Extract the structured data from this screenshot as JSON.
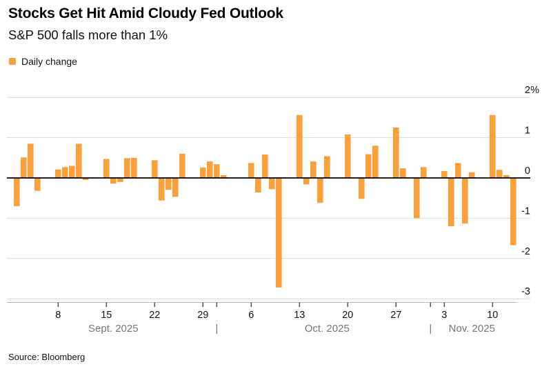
{
  "header": {
    "title": "Stocks Get Hit Amid Cloudy Fed Outlook",
    "subtitle": "S&P 500 falls more than 1%",
    "legend": [
      {
        "label": "Daily change",
        "color": "#F8A03C"
      }
    ]
  },
  "chart_data": {
    "type": "bar",
    "series_name": "Daily change",
    "unit": "%",
    "bar_color": "#F8A03C",
    "grid": true,
    "legend_position": "top-left",
    "ylim": [
      -3,
      2
    ],
    "yticks": [
      {
        "value": 2,
        "label": "2%"
      },
      {
        "value": 1,
        "label": "1"
      },
      {
        "value": 0,
        "label": "0"
      },
      {
        "value": -1,
        "label": "-1"
      },
      {
        "value": -2,
        "label": "-2"
      },
      {
        "value": -3,
        "label": "-3"
      }
    ],
    "x": [
      "2025-09-02",
      "2025-09-03",
      "2025-09-04",
      "2025-09-05",
      "2025-09-08",
      "2025-09-09",
      "2025-09-10",
      "2025-09-11",
      "2025-09-12",
      "2025-09-15",
      "2025-09-16",
      "2025-09-17",
      "2025-09-18",
      "2025-09-19",
      "2025-09-22",
      "2025-09-23",
      "2025-09-24",
      "2025-09-25",
      "2025-09-26",
      "2025-09-29",
      "2025-09-30",
      "2025-10-01",
      "2025-10-02",
      "2025-10-03",
      "2025-10-06",
      "2025-10-07",
      "2025-10-08",
      "2025-10-09",
      "2025-10-10",
      "2025-10-13",
      "2025-10-14",
      "2025-10-15",
      "2025-10-16",
      "2025-10-17",
      "2025-10-20",
      "2025-10-21",
      "2025-10-22",
      "2025-10-23",
      "2025-10-24",
      "2025-10-27",
      "2025-10-28",
      "2025-10-29",
      "2025-10-30",
      "2025-10-31",
      "2025-11-03",
      "2025-11-04",
      "2025-11-05",
      "2025-11-06",
      "2025-11-07",
      "2025-11-10",
      "2025-11-11",
      "2025-11-12",
      "2025-11-13"
    ],
    "values": [
      -0.7,
      0.51,
      0.85,
      -0.32,
      0.21,
      0.27,
      0.3,
      0.85,
      -0.05,
      0.47,
      -0.14,
      -0.1,
      0.49,
      0.5,
      0.44,
      -0.56,
      -0.29,
      -0.47,
      0.6,
      0.26,
      0.41,
      0.34,
      0.07,
      0.01,
      0.37,
      -0.36,
      0.58,
      -0.28,
      -2.72,
      1.56,
      -0.16,
      0.41,
      -0.62,
      0.54,
      1.08,
      0.0,
      -0.52,
      0.59,
      0.8,
      1.25,
      0.24,
      0.0,
      -1.0,
      0.27,
      0.17,
      -1.2,
      0.37,
      -1.13,
      0.14,
      1.56,
      0.2,
      0.07,
      -1.67
    ],
    "xticks": [
      {
        "date": "2025-09-08",
        "label": "8"
      },
      {
        "date": "2025-09-15",
        "label": "15"
      },
      {
        "date": "2025-09-22",
        "label": "22"
      },
      {
        "date": "2025-09-29",
        "label": "29"
      },
      {
        "date": "2025-10-06",
        "label": "6"
      },
      {
        "date": "2025-10-13",
        "label": "13"
      },
      {
        "date": "2025-10-20",
        "label": "20"
      },
      {
        "date": "2025-10-27",
        "label": "27"
      },
      {
        "date": "2025-11-03",
        "label": "3"
      },
      {
        "date": "2025-11-10",
        "label": "10"
      }
    ],
    "separator_ticks": [
      "2025-10-01",
      "2025-11-01"
    ],
    "month_labels": [
      {
        "label": "Sept. 2025",
        "anchor": "2025-09-16"
      },
      {
        "label": "Oct. 2025",
        "anchor": "2025-10-17"
      },
      {
        "label": "Nov. 2025",
        "anchor": "2025-11-07"
      }
    ],
    "month_separator_glyph": "|"
  },
  "footer": {
    "source": "Source: Bloomberg"
  }
}
